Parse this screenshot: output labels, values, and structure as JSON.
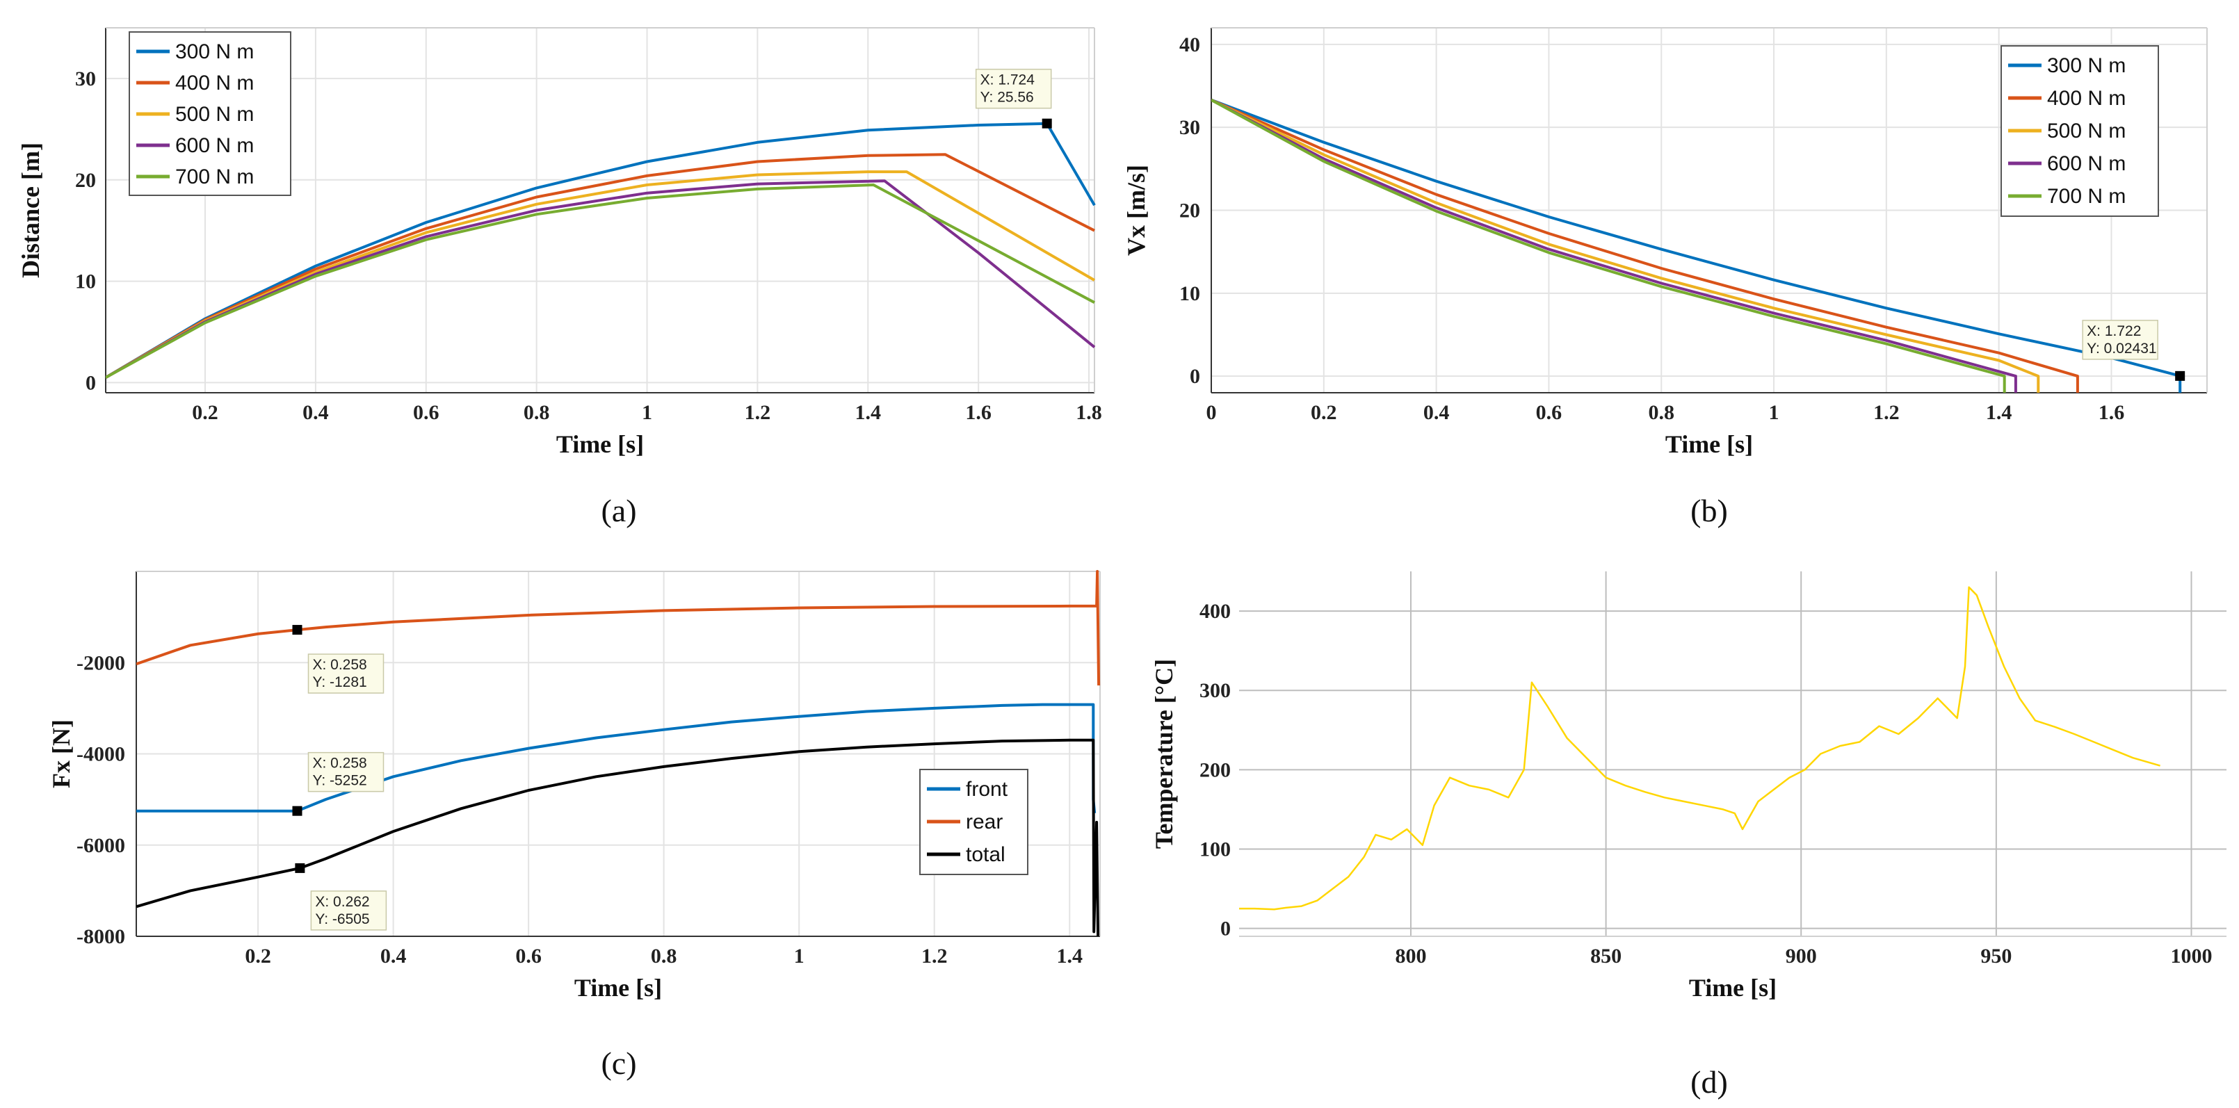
{
  "chart_data": [
    {
      "id": "a",
      "type": "line",
      "caption": "(a)",
      "xlabel": "Time [s]",
      "ylabel": "Distance [m]",
      "xlim": [
        0.02,
        1.81
      ],
      "ylim": [
        -1,
        35
      ],
      "xticks": [
        0.2,
        0.4,
        0.6,
        0.8,
        1,
        1.2,
        1.4,
        1.6,
        1.8
      ],
      "xtick_labels": [
        "0.2",
        "0.4",
        "0.6",
        "0.8",
        "1",
        "1.2",
        "1.4",
        "1.6",
        "1.8"
      ],
      "yticks": [
        0,
        10,
        20,
        30
      ],
      "ytick_labels": [
        "0",
        "10",
        "20",
        "30"
      ],
      "grid": true,
      "legend_position": "top-left",
      "series": [
        {
          "name": "300 N m",
          "color": "#0072BD",
          "x": [
            0.02,
            0.2,
            0.4,
            0.6,
            0.8,
            1.0,
            1.2,
            1.4,
            1.6,
            1.724,
            1.81
          ],
          "y": [
            0.5,
            6.3,
            11.5,
            15.8,
            19.2,
            21.8,
            23.7,
            24.9,
            25.4,
            25.56,
            17.5
          ]
        },
        {
          "name": "400 N m",
          "color": "#D95319",
          "x": [
            0.02,
            0.2,
            0.4,
            0.6,
            0.8,
            1.0,
            1.2,
            1.4,
            1.54,
            1.81
          ],
          "y": [
            0.5,
            6.2,
            11.2,
            15.2,
            18.3,
            20.4,
            21.8,
            22.4,
            22.5,
            15.0
          ]
        },
        {
          "name": "500 N m",
          "color": "#EDB120",
          "x": [
            0.02,
            0.2,
            0.4,
            0.6,
            0.8,
            1.0,
            1.2,
            1.4,
            1.47,
            1.81
          ],
          "y": [
            0.5,
            6.1,
            10.9,
            14.8,
            17.6,
            19.5,
            20.5,
            20.8,
            20.8,
            10.1
          ]
        },
        {
          "name": "600 N m",
          "color": "#7E2F8E",
          "x": [
            0.02,
            0.2,
            0.4,
            0.6,
            0.8,
            1.0,
            1.2,
            1.43,
            1.6,
            1.81
          ],
          "y": [
            0.5,
            6.0,
            10.7,
            14.4,
            17.0,
            18.7,
            19.6,
            19.9,
            12.8,
            3.5
          ]
        },
        {
          "name": "700 N m",
          "color": "#77AC30",
          "x": [
            0.02,
            0.2,
            0.4,
            0.6,
            0.8,
            1.0,
            1.2,
            1.41,
            1.6,
            1.81
          ],
          "y": [
            0.5,
            5.9,
            10.5,
            14.1,
            16.6,
            18.2,
            19.1,
            19.5,
            14.0,
            7.9
          ]
        }
      ],
      "datatips": [
        {
          "x": 1.724,
          "y": 25.56,
          "x_label": "X: 1.724",
          "y_label": "Y: 25.56"
        }
      ]
    },
    {
      "id": "b",
      "type": "line",
      "caption": "(b)",
      "xlabel": "Time [s]",
      "ylabel": "Vx [m/s]",
      "xlim": [
        0,
        1.77
      ],
      "ylim": [
        -2,
        42
      ],
      "xticks": [
        0,
        0.2,
        0.4,
        0.6,
        0.8,
        1,
        1.2,
        1.4,
        1.6
      ],
      "xtick_labels": [
        "0",
        "0.2",
        "0.4",
        "0.6",
        "0.8",
        "1",
        "1.2",
        "1.4",
        "1.6"
      ],
      "yticks": [
        0,
        10,
        20,
        30,
        40
      ],
      "ytick_labels": [
        "0",
        "10",
        "20",
        "30",
        "40"
      ],
      "grid": true,
      "legend_position": "top-right",
      "series": [
        {
          "name": "300 N m",
          "color": "#0072BD",
          "x": [
            0,
            0.2,
            0.4,
            0.6,
            0.8,
            1.0,
            1.2,
            1.4,
            1.6,
            1.722,
            1.722
          ],
          "y": [
            33.3,
            28.2,
            23.5,
            19.2,
            15.3,
            11.6,
            8.2,
            5.1,
            2.2,
            0.02431,
            -2
          ]
        },
        {
          "name": "400 N m",
          "color": "#D95319",
          "x": [
            0,
            0.2,
            0.4,
            0.6,
            0.8,
            1.0,
            1.2,
            1.4,
            1.54,
            1.54
          ],
          "y": [
            33.3,
            27.3,
            21.9,
            17.2,
            13.0,
            9.3,
            5.9,
            2.8,
            0.0,
            -2
          ]
        },
        {
          "name": "500 N m",
          "color": "#EDB120",
          "x": [
            0,
            0.2,
            0.4,
            0.6,
            0.8,
            1.0,
            1.2,
            1.4,
            1.47,
            1.47
          ],
          "y": [
            33.3,
            26.7,
            20.9,
            15.9,
            11.8,
            8.2,
            5.0,
            1.9,
            0.0,
            -2
          ]
        },
        {
          "name": "600 N m",
          "color": "#7E2F8E",
          "x": [
            0,
            0.2,
            0.4,
            0.6,
            0.8,
            1.0,
            1.2,
            1.43,
            1.43
          ],
          "y": [
            33.3,
            26.2,
            20.3,
            15.3,
            11.2,
            7.6,
            4.3,
            0.0,
            -2
          ]
        },
        {
          "name": "700 N m",
          "color": "#77AC30",
          "x": [
            0,
            0.2,
            0.4,
            0.6,
            0.8,
            1.0,
            1.2,
            1.41,
            1.41
          ],
          "y": [
            33.3,
            25.9,
            19.9,
            14.9,
            10.8,
            7.2,
            3.9,
            0.0,
            -2
          ]
        }
      ],
      "datatips": [
        {
          "x": 1.722,
          "y": 0.02431,
          "x_label": "X: 1.722",
          "y_label": "Y: 0.02431"
        }
      ]
    },
    {
      "id": "c",
      "type": "line",
      "caption": "(c)",
      "xlabel": "Time [s]",
      "ylabel": "Fx [N]",
      "xlim": [
        0.02,
        1.445
      ],
      "ylim": [
        -8000,
        0
      ],
      "xticks": [
        0.2,
        0.4,
        0.6,
        0.8,
        1,
        1.2,
        1.4
      ],
      "xtick_labels": [
        "0.2",
        "0.4",
        "0.6",
        "0.8",
        "1",
        "1.2",
        "1.4"
      ],
      "yticks": [
        -8000,
        -6000,
        -4000,
        -2000
      ],
      "ytick_labels": [
        "-8000",
        "-6000",
        "-4000",
        "-2000"
      ],
      "grid": true,
      "legend_position": "bottom-right",
      "series": [
        {
          "name": "front",
          "color": "#0072BD",
          "x": [
            0.02,
            0.258,
            0.3,
            0.4,
            0.5,
            0.6,
            0.7,
            0.8,
            0.9,
            1.0,
            1.1,
            1.2,
            1.3,
            1.36,
            1.435,
            1.435,
            1.437
          ],
          "y": [
            -5252,
            -5252,
            -5000,
            -4500,
            -4150,
            -3880,
            -3650,
            -3470,
            -3300,
            -3180,
            -3070,
            -3000,
            -2940,
            -2920,
            -2920,
            -5000,
            -5300
          ]
        },
        {
          "name": "rear",
          "color": "#D95319",
          "x": [
            0.02,
            0.1,
            0.2,
            0.258,
            0.3,
            0.4,
            0.6,
            0.8,
            1.0,
            1.2,
            1.4,
            1.44,
            1.441,
            1.443
          ],
          "y": [
            -2030,
            -1620,
            -1370,
            -1281,
            -1220,
            -1110,
            -960,
            -860,
            -800,
            -770,
            -760,
            -760,
            0,
            -2500
          ]
        },
        {
          "name": "total",
          "color": "#000000",
          "x": [
            0.02,
            0.1,
            0.2,
            0.262,
            0.3,
            0.4,
            0.5,
            0.6,
            0.7,
            0.8,
            0.9,
            1.0,
            1.1,
            1.2,
            1.3,
            1.4,
            1.435,
            1.436,
            1.44,
            1.442
          ],
          "y": [
            -7350,
            -7000,
            -6700,
            -6505,
            -6300,
            -5700,
            -5200,
            -4800,
            -4500,
            -4280,
            -4100,
            -3950,
            -3850,
            -3780,
            -3720,
            -3700,
            -3700,
            -7900,
            -5500,
            -8000
          ]
        }
      ],
      "datatips": [
        {
          "x": 0.258,
          "y": -1281,
          "x_label": "X: 0.258",
          "y_label": "Y: -1281"
        },
        {
          "x": 0.258,
          "y": -5252,
          "x_label": "X: 0.258",
          "y_label": "Y: -5252"
        },
        {
          "x": 0.262,
          "y": -6505,
          "x_label": "X: 0.262",
          "y_label": "Y: -6505"
        }
      ]
    },
    {
      "id": "d",
      "type": "line",
      "caption": "(d)",
      "xlabel": "Time [s]",
      "ylabel": "Temperature [°C]",
      "xlim": [
        756,
        1009
      ],
      "ylim": [
        -10,
        450
      ],
      "xticks": [
        800,
        850,
        900,
        950,
        1000
      ],
      "xtick_labels": [
        "800",
        "850",
        "900",
        "950",
        "1000"
      ],
      "yticks": [
        0,
        100,
        200,
        300,
        400
      ],
      "ytick_labels": [
        "0",
        "100",
        "200",
        "300",
        "400"
      ],
      "grid": true,
      "series": [
        {
          "name": "temperature",
          "color": "#FFD600",
          "x": [
            756,
            760,
            765,
            768,
            772,
            776,
            780,
            784,
            788,
            791,
            795,
            799,
            803,
            806,
            810,
            815,
            820,
            825,
            829,
            831,
            835,
            840,
            845,
            850,
            855,
            860,
            865,
            870,
            875,
            880,
            883,
            885,
            889,
            893,
            897,
            901,
            905,
            910,
            915,
            920,
            925,
            930,
            935,
            940,
            942,
            943,
            945,
            948,
            952,
            956,
            960,
            965,
            970,
            975,
            980,
            985,
            992
          ],
          "y": [
            25,
            25,
            24,
            26,
            28,
            35,
            50,
            65,
            90,
            118,
            112,
            125,
            105,
            155,
            190,
            180,
            175,
            165,
            200,
            310,
            280,
            240,
            215,
            190,
            180,
            172,
            165,
            160,
            155,
            150,
            145,
            125,
            160,
            175,
            190,
            200,
            220,
            230,
            235,
            255,
            245,
            265,
            290,
            265,
            330,
            430,
            420,
            380,
            330,
            290,
            262,
            254,
            245,
            235,
            225,
            215,
            205
          ]
        }
      ]
    }
  ]
}
